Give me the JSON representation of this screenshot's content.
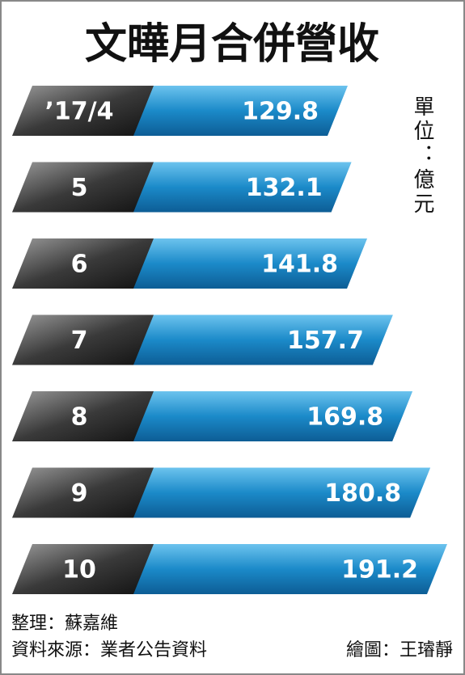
{
  "chart_data": {
    "type": "bar",
    "orientation": "horizontal",
    "title": "文曄月合併營收",
    "unit": "單位：億元",
    "categories": [
      "’17/4",
      "5",
      "6",
      "7",
      "8",
      "9",
      "10"
    ],
    "values": [
      129.8,
      132.1,
      141.8,
      157.7,
      169.8,
      180.8,
      191.2
    ],
    "color": "#1b8ac9",
    "notes": [
      "整理：蘇嘉維",
      "資料來源：業者公告資料",
      "繪圖：王璿靜"
    ]
  }
}
